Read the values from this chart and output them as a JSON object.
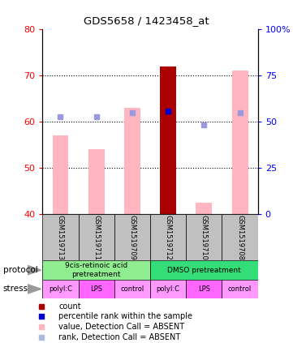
{
  "title": "GDS5658 / 1423458_at",
  "samples": [
    "GSM1519713",
    "GSM1519711",
    "GSM1519709",
    "GSM1519712",
    "GSM1519710",
    "GSM1519708"
  ],
  "ylim_left": [
    40,
    80
  ],
  "left_ticks": [
    40,
    50,
    60,
    70,
    80
  ],
  "right_ticks": [
    0,
    25,
    50,
    75,
    100
  ],
  "right_tick_positions": [
    40,
    50,
    60,
    70,
    80
  ],
  "dotted_lines": [
    50,
    60,
    70
  ],
  "bar_bottoms": [
    40,
    40,
    40,
    40,
    40,
    40
  ],
  "pink_bar_tops": [
    57,
    54,
    63,
    72,
    42.5,
    71
  ],
  "red_bar_sample": 3,
  "blue_square_y": [
    61,
    61,
    62,
    62.3,
    59.3,
    62
  ],
  "protocol_label_left": "9cis-retinoic acid\npretreatment",
  "protocol_label_right": "DMSO pretreatment",
  "protocol_color_left": "#90EE90",
  "protocol_color_right": "#33DD77",
  "stress_labels": [
    "polyI:C",
    "LPS",
    "control",
    "polyI:C",
    "LPS",
    "control"
  ],
  "stress_colors": [
    "#FF99FF",
    "#FF66FF",
    "#FF99FF",
    "#FF99FF",
    "#FF66FF",
    "#FF99FF"
  ],
  "sample_box_color": "#C0C0C0",
  "bar_color_pink": "#FFB6C1",
  "bar_color_red": "#AA0000",
  "dot_color_blue_dark": "#0000CC",
  "dot_color_blue_light": "#9999DD",
  "legend_items": [
    "count",
    "percentile rank within the sample",
    "value, Detection Call = ABSENT",
    "rank, Detection Call = ABSENT"
  ],
  "legend_colors": [
    "#AA0000",
    "#0000CC",
    "#FFB6C1",
    "#AABBDD"
  ]
}
